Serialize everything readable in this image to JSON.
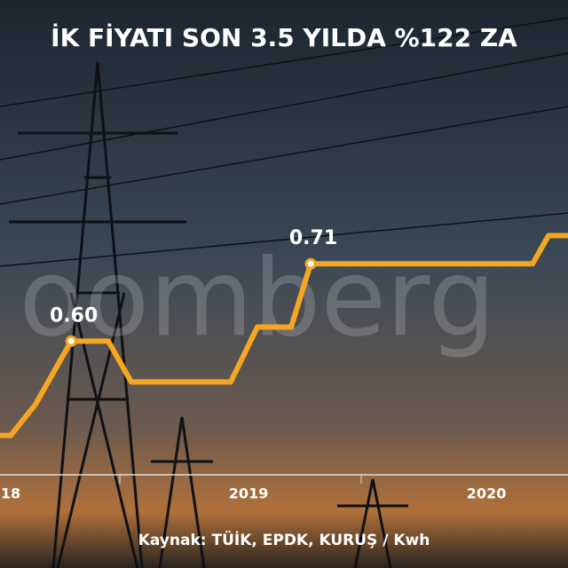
{
  "chart_data": {
    "type": "line",
    "title": "İK FİYATI SON 3.5 YILDA %122 ZA",
    "watermark": "oomberg",
    "source": "Kaynak: TÜİK, EPDK, KURUŞ / Kwh",
    "x": [
      2017.955,
      2018.0,
      2018.104,
      2018.254,
      2018.41,
      2018.507,
      2018.925,
      2019.037,
      2019.179,
      2019.261,
      2020.194,
      2020.261,
      2020.343
    ],
    "values": [
      0.466,
      0.466,
      0.51,
      0.6,
      0.6,
      0.542,
      0.542,
      0.62,
      0.62,
      0.71,
      0.71,
      0.75,
      0.75
    ],
    "value_labels": [
      null,
      null,
      null,
      "0.60",
      null,
      null,
      null,
      null,
      null,
      "0.71",
      null,
      null,
      null
    ],
    "color": "#f5a623",
    "xlim": [
      2017.955,
      2020.343
    ],
    "xticks": [
      {
        "value": 2018,
        "label": "18"
      },
      2019,
      2020
    ],
    "ylim": [
      0.41,
      1.085
    ]
  }
}
